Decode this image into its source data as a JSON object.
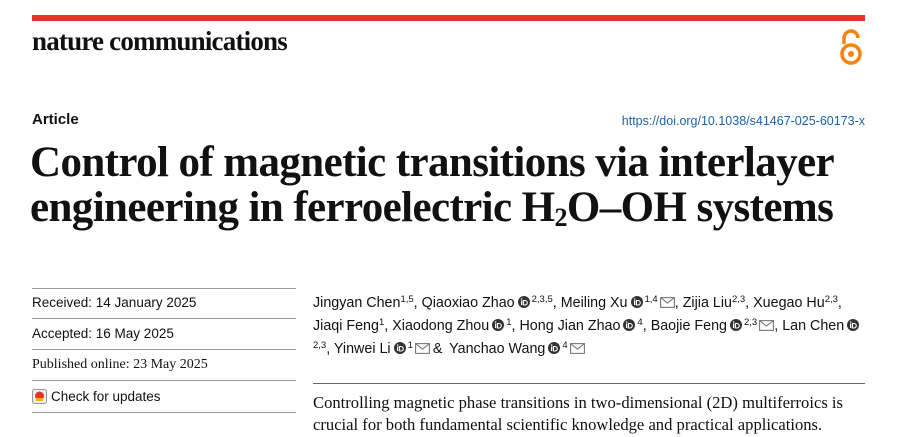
{
  "header": {
    "journal": "nature communications",
    "article_type": "Article",
    "doi": "https://doi.org/10.1038/s41467-025-60173-x"
  },
  "title": {
    "line1": "Control of magnetic transitions via interlayer",
    "line2_before": "engineering in ferroelectric H",
    "line2_sub": "2",
    "line2_after": "O–OH systems"
  },
  "dates": {
    "received": "Received: 14 January 2025",
    "accepted": "Accepted: 16 May 2025",
    "published": "Published online: 23 May 2025",
    "check_updates": "Check for updates"
  },
  "authors": [
    {
      "name": "Jingyan Chen",
      "affiliations": "1,5",
      "orcid": false,
      "corresponding": false,
      "separator": ","
    },
    {
      "name": "Qiaoxiao Zhao",
      "affiliations": "2,3,5",
      "orcid": true,
      "corresponding": false,
      "separator": ","
    },
    {
      "name": "Meiling Xu",
      "affiliations": "1,4",
      "orcid": true,
      "corresponding": true,
      "separator": ","
    },
    {
      "name": "Zijia Liu",
      "affiliations": "2,3",
      "orcid": false,
      "corresponding": false,
      "separator": ","
    },
    {
      "name": "Xuegao Hu",
      "affiliations": "2,3",
      "orcid": false,
      "corresponding": false,
      "separator": ","
    },
    {
      "name": "Jiaqi Feng",
      "affiliations": "1",
      "orcid": false,
      "corresponding": false,
      "separator": ","
    },
    {
      "name": "Xiaodong Zhou",
      "affiliations": "1",
      "orcid": true,
      "corresponding": false,
      "separator": ","
    },
    {
      "name": "Hong Jian Zhao",
      "affiliations": "4",
      "orcid": true,
      "corresponding": false,
      "separator": ","
    },
    {
      "name": "Baojie Feng",
      "affiliations": "2,3",
      "orcid": true,
      "corresponding": true,
      "separator": ","
    },
    {
      "name": "Lan Chen",
      "affiliations": "2,3",
      "orcid": true,
      "corresponding": false,
      "separator": ","
    },
    {
      "name": "Yinwei Li",
      "affiliations": "1",
      "orcid": true,
      "corresponding": true,
      "separator": "&"
    },
    {
      "name": "Yanchao Wang",
      "affiliations": "4",
      "orcid": true,
      "corresponding": true
    }
  ],
  "abstract": "Controlling magnetic phase transitions in two-dimensional (2D) multiferroics is crucial for both fundamental scientific knowledge and practical applications."
}
